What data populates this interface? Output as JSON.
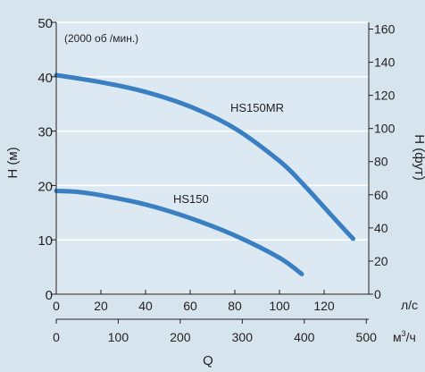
{
  "chart_data": {
    "type": "line",
    "annotation": "(2000 об /мин.)",
    "left_axis": {
      "label": "H (м)",
      "range": [
        0,
        50
      ],
      "ticks": [
        0,
        10,
        20,
        30,
        40,
        50
      ]
    },
    "right_axis": {
      "label": "H (фут)",
      "range": [
        0,
        164.04
      ],
      "ticks": [
        0,
        20,
        40,
        60,
        80,
        100,
        120,
        140,
        160
      ]
    },
    "x_axis_primary": {
      "unit": "л/с",
      "range": [
        0,
        140
      ],
      "ticks": [
        0,
        20,
        40,
        60,
        80,
        100,
        120
      ]
    },
    "x_axis_secondary": {
      "label": "Q",
      "unit_base": "м",
      "unit_sup": "3",
      "unit_tail": "/ч",
      "range": [
        0,
        504
      ],
      "ticks": [
        0,
        100,
        200,
        300,
        400,
        500
      ]
    },
    "grid": "horizontal",
    "series": [
      {
        "name": "HS150MR",
        "color": "#3a7fc1",
        "x": [
          0,
          20,
          40,
          60,
          80,
          100,
          110,
          120,
          130,
          133
        ],
        "y": [
          40.3,
          39.0,
          37.2,
          34.5,
          30.5,
          24.5,
          20.5,
          16.0,
          11.5,
          10.2
        ]
      },
      {
        "name": "HS150",
        "color": "#3a7fc1",
        "x": [
          0,
          10,
          20,
          40,
          60,
          80,
          100,
          110
        ],
        "y": [
          19.0,
          18.8,
          18.2,
          16.5,
          14.0,
          10.8,
          6.7,
          3.7
        ]
      }
    ]
  }
}
